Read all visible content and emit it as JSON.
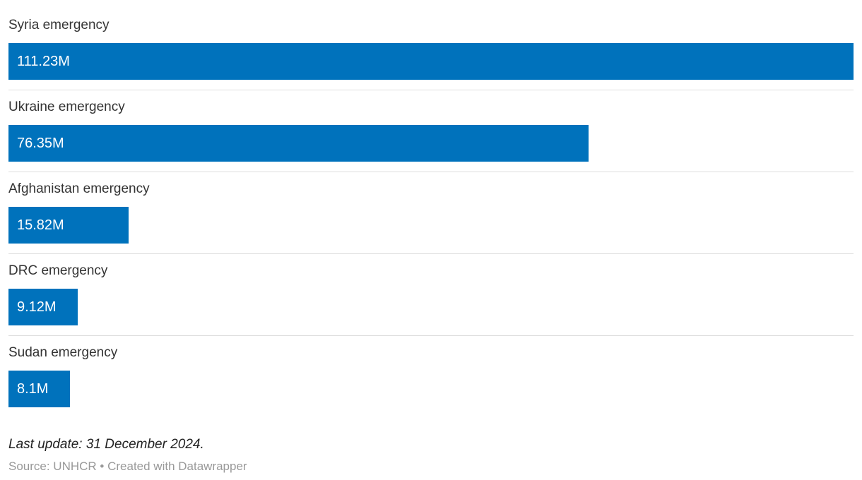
{
  "chart_data": {
    "type": "bar",
    "orientation": "horizontal",
    "categories": [
      "Syria emergency",
      "Ukraine emergency",
      "Afghanistan emergency",
      "DRC emergency",
      "Sudan emergency"
    ],
    "values": [
      111.23,
      76.35,
      15.82,
      9.12,
      8.1
    ],
    "value_labels": [
      "111.23M",
      "76.35M",
      "15.82M",
      "9.12M",
      "8.1M"
    ],
    "xlim": [
      0,
      111.23
    ],
    "bar_color": "#0072bc",
    "label_color": "#333333",
    "value_label_color": "#ffffff",
    "grid": false,
    "legend": false,
    "title": "",
    "xlabel": "",
    "ylabel": ""
  },
  "footer": {
    "last_update": "Last update: 31 December 2024.",
    "source": "Source: UNHCR • Created with Datawrapper"
  }
}
